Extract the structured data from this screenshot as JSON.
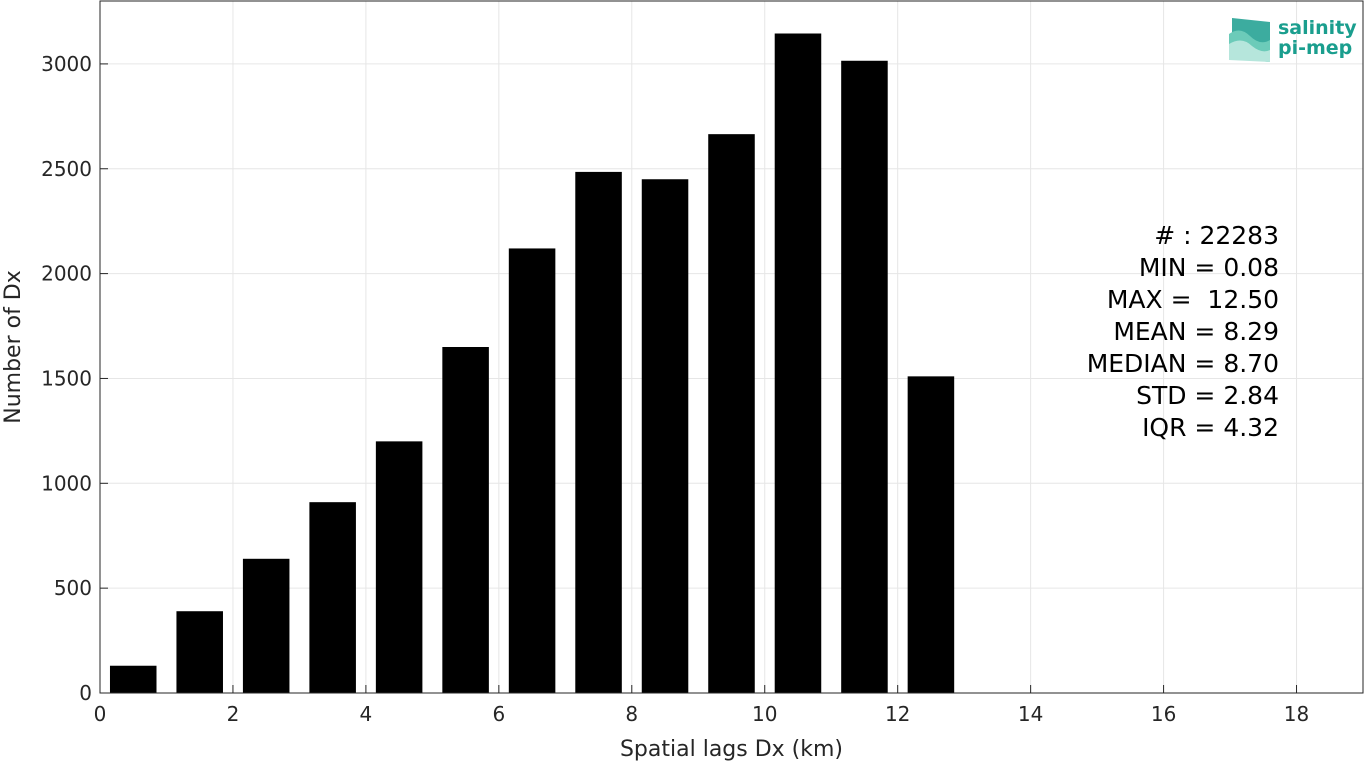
{
  "chart_data": {
    "type": "bar",
    "x": [
      0.5,
      1.5,
      2.5,
      3.5,
      4.5,
      5.5,
      6.5,
      7.5,
      8.5,
      9.5,
      10.5,
      11.5,
      12.5
    ],
    "values": [
      130,
      390,
      640,
      910,
      1200,
      1650,
      2120,
      2485,
      2450,
      2665,
      3145,
      3015,
      1510
    ],
    "bar_width": 0.7,
    "bar_color": "#000000",
    "xlabel": "Spatial lags Dx (km)",
    "ylabel": "Number of Dx",
    "xlim": [
      0,
      19
    ],
    "ylim": [
      0,
      3300
    ],
    "xticks": [
      0,
      2,
      4,
      6,
      8,
      10,
      12,
      14,
      16,
      18
    ],
    "yticks": [
      0,
      500,
      1000,
      1500,
      2000,
      2500,
      3000
    ],
    "grid": true,
    "annotations": [
      "# : 22283",
      "MIN = 0.08",
      "MAX =  12.50",
      "MEAN = 8.29",
      "MEDIAN = 8.70",
      "STD = 2.84",
      "IQR = 4.32"
    ]
  },
  "logo": {
    "line1": "salinity",
    "line2": "pi-mep",
    "color": "#1a9e8e"
  }
}
